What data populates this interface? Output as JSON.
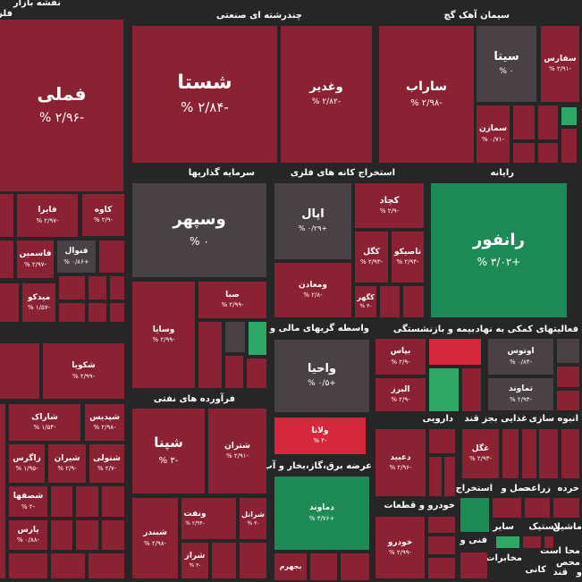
{
  "colors": {
    "background": "#262626",
    "neg": "#8b2234",
    "neg_strong": "#d6273d",
    "neutral": "#4a4146",
    "pos": "#1e8a55",
    "pos_light": "#2da866"
  },
  "sections": [
    {
      "id": "s1",
      "label": "نقشه بازار"
    },
    {
      "id": "s2",
      "label": "فلز"
    },
    {
      "id": "s3",
      "label": "چندرشته ای صنعتی"
    },
    {
      "id": "s4",
      "label": "سیمان آهک گچ"
    },
    {
      "id": "s5",
      "label": "سرمایه گذاریها"
    },
    {
      "id": "s6",
      "label": "استخراج کانه های فلزی"
    },
    {
      "id": "s7",
      "label": "رایانه"
    },
    {
      "id": "s8",
      "label": "واسطه گریهای مالی و"
    },
    {
      "id": "s9",
      "label": "بیمه و بازنشستگی"
    },
    {
      "id": "s10",
      "label": "فعالیتهای کمکی به نهاد"
    },
    {
      "id": "s11",
      "label": "فرآورده های نفتی"
    },
    {
      "id": "s12",
      "label": "دارویی"
    },
    {
      "id": "s13",
      "label": "غذایی بجز قند"
    },
    {
      "id": "s14",
      "label": "انبوه سازی"
    },
    {
      "id": "s15",
      "label": "عرضه برق،گاز،بخار و آب"
    },
    {
      "id": "s16",
      "label": "استخراج"
    },
    {
      "id": "s17",
      "label": "حمل و"
    },
    {
      "id": "s18",
      "label": "زراعت"
    },
    {
      "id": "s19",
      "label": "خرده"
    },
    {
      "id": "s20",
      "label": "خودرو و قطعات"
    },
    {
      "id": "s21",
      "label": "سایر"
    },
    {
      "id": "s22",
      "label": "لاستیک"
    },
    {
      "id": "s23",
      "label": "ماشین"
    },
    {
      "id": "s24",
      "label": "فنی و"
    },
    {
      "id": "s25",
      "label": "مخابرات"
    },
    {
      "id": "s26",
      "label": "محا"
    },
    {
      "id": "s27",
      "label": "است"
    },
    {
      "id": "s28",
      "label": "محص"
    },
    {
      "id": "s29",
      "label": "کانی"
    },
    {
      "id": "s30",
      "label": "قند"
    },
    {
      "id": "s31",
      "label": "و"
    }
  ],
  "tiles": [
    {
      "id": "t1",
      "symbol": "فملی",
      "change": "-۲/۹۶ %",
      "color": "neg"
    },
    {
      "id": "t2",
      "symbol": "شستا",
      "change": "-۲/۸۴ %",
      "color": "neg"
    },
    {
      "id": "t3",
      "symbol": "وغدیر",
      "change": "-۲/۸۲ %",
      "color": "neg"
    },
    {
      "id": "t4",
      "symbol": "ساراب",
      "change": "-۲/۹۸ %",
      "color": "neg"
    },
    {
      "id": "t5",
      "symbol": "سیتا",
      "change": "۰ %",
      "color": "neutral"
    },
    {
      "id": "t6",
      "symbol": "سفارس",
      "change": "-۲/۹۱ %",
      "color": "neg"
    },
    {
      "id": "t7",
      "symbol": "سمازن",
      "change": "-۰/۷۱ %",
      "color": "neg"
    },
    {
      "id": "t8",
      "symbol": "وسپهر",
      "change": "۰ %",
      "color": "neutral"
    },
    {
      "id": "t9",
      "symbol": "اپال",
      "change": "+۰/۲۹ %",
      "color": "neutral"
    },
    {
      "id": "t10",
      "symbol": "کچاد",
      "change": "-۲/۹ %",
      "color": "neg"
    },
    {
      "id": "t11",
      "symbol": "رانفور",
      "change": "+۳/۰۲ %",
      "color": "pos"
    },
    {
      "id": "t12",
      "symbol": "کاوه",
      "change": "-۲/۹ %",
      "color": "neg"
    },
    {
      "id": "t13",
      "symbol": "فایرا",
      "change": "-۲/۹۷ %",
      "color": "neg"
    },
    {
      "id": "t14",
      "symbol": "فنوال",
      "change": "+۰/۸۶ %",
      "color": "neutral"
    },
    {
      "id": "t15",
      "symbol": "فاسمین",
      "change": "-۲/۹۷ %",
      "color": "neg"
    },
    {
      "id": "t16",
      "symbol": "میدکو",
      "change": "-۱/۵۷ %",
      "color": "neg"
    },
    {
      "id": "t17",
      "symbol": "کگل",
      "change": "-۲/۹۳ %",
      "color": "neg"
    },
    {
      "id": "t18",
      "symbol": "تاصیکو",
      "change": "-۲/۹۴ %",
      "color": "neg"
    },
    {
      "id": "t19",
      "symbol": "کگهر",
      "change": "-۳ %",
      "color": "neg"
    },
    {
      "id": "t20",
      "symbol": "ومعادن",
      "change": "-۲/۸ %",
      "color": "neg"
    },
    {
      "id": "t21",
      "symbol": "صبا",
      "change": "-۲/۹۹ %",
      "color": "neg"
    },
    {
      "id": "t22",
      "symbol": "وسایا",
      "change": "-۲/۹۹ %",
      "color": "neg"
    },
    {
      "id": "t23",
      "symbol": "واحیا",
      "change": "+۰/۵ %",
      "color": "neutral"
    },
    {
      "id": "t24",
      "symbol": "بپاس",
      "change": "-۲/۹ %",
      "color": "neg"
    },
    {
      "id": "t25",
      "symbol": "البرز",
      "change": "-۲/۹ %",
      "color": "neg"
    },
    {
      "id": "t26",
      "symbol": "اوتوس",
      "change": "-۰/۸۴ %",
      "color": "neutral"
    },
    {
      "id": "t27",
      "symbol": "تماوند",
      "change": "-۲/۹۴ %",
      "color": "neutral"
    },
    {
      "id": "t28",
      "symbol": "شکویا",
      "change": "-۲/۹۹ %",
      "color": "neg"
    },
    {
      "id": "t29",
      "symbol": "شاراک",
      "change": "-۱/۵۴ %",
      "color": "neg"
    },
    {
      "id": "t30",
      "symbol": "شپدیس",
      "change": "-۲/۹۸ %",
      "color": "neg"
    },
    {
      "id": "t31",
      "symbol": "زاگرس",
      "change": "-۱/۹۵ %",
      "color": "neg"
    },
    {
      "id": "t32",
      "symbol": "شیران",
      "change": "-۲/۹ %",
      "color": "neg"
    },
    {
      "id": "t33",
      "symbol": "شتولی",
      "change": "-۲/۷ %",
      "color": "neg"
    },
    {
      "id": "t34",
      "symbol": "شصفها",
      "change": "-۲ %",
      "color": "neg"
    },
    {
      "id": "t35",
      "symbol": "پارس",
      "change": "-۰/۸۸ %",
      "color": "neg"
    },
    {
      "id": "t36",
      "symbol": "شپنا",
      "change": "-۳ %",
      "color": "neg"
    },
    {
      "id": "t37",
      "symbol": "شتران",
      "change": "-۲/۹۱ %",
      "color": "neg"
    },
    {
      "id": "t38",
      "symbol": "شبندر",
      "change": "-۲/۹۸ %",
      "color": "neg"
    },
    {
      "id": "t39",
      "symbol": "ونفت",
      "change": "-۲/۹۴ %",
      "color": "neg"
    },
    {
      "id": "t40",
      "symbol": "شراز",
      "change": "-۳ %",
      "color": "neg"
    },
    {
      "id": "t41",
      "symbol": "شرانل",
      "change": "-۳ %",
      "color": "neg"
    },
    {
      "id": "t42",
      "symbol": "ولانا",
      "change": "-۴ %",
      "color": "neg_strong"
    },
    {
      "id": "t43",
      "symbol": "دماوند",
      "change": "+۳/۷۶ %",
      "color": "pos"
    },
    {
      "id": "t44",
      "symbol": "بجهرم",
      "change": "",
      "color": "neg"
    },
    {
      "id": "t45",
      "symbol": "دعبید",
      "change": "-۲/۹۶ %",
      "color": "neg"
    },
    {
      "id": "t46",
      "symbol": "غگل",
      "change": "-۲/۹۳ %",
      "color": "neg"
    },
    {
      "id": "t47",
      "symbol": "خودرو",
      "change": "-۲/۹۹ %",
      "color": "neg"
    }
  ]
}
